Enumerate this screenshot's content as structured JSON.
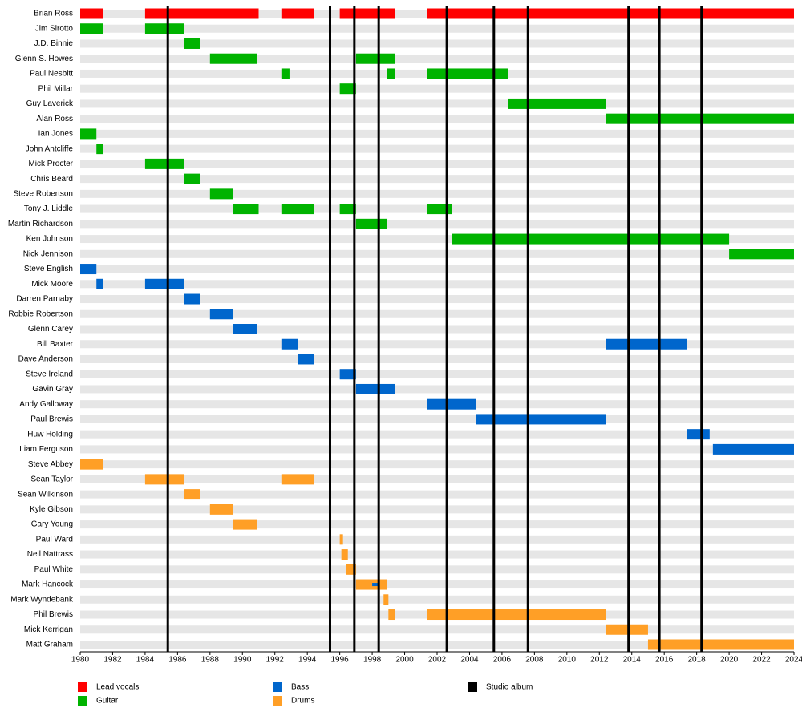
{
  "chart_data": {
    "type": "timeline",
    "categories": [
      "Brian Ross",
      "Jim Sirotto",
      "J.D. Binnie",
      "Glenn S. Howes",
      "Paul Nesbitt",
      "Phil Millar",
      "Guy Laverick",
      "Alan Ross",
      "Ian Jones",
      "John Antcliffe",
      "Mick Procter",
      "Chris Beard",
      "Steve Robertson",
      "Tony J. Liddle",
      "Martin Richardson",
      "Ken Johnson",
      "Nick Jennison",
      "Steve English",
      "Mick Moore",
      "Darren Parnaby",
      "Robbie Robertson",
      "Glenn Carey",
      "Bill Baxter",
      "Dave Anderson",
      "Steve Ireland",
      "Gavin Gray",
      "Andy Galloway",
      "Paul Brewis",
      "Huw Holding",
      "Liam Ferguson",
      "Steve Abbey",
      "Sean Taylor",
      "Sean Wilkinson",
      "Kyle Gibson",
      "Gary Young",
      "Paul Ward",
      "Neil Nattrass",
      "Paul White",
      "Mark Hancock",
      "Mark Wyndebank",
      "Phil Brewis",
      "Mick Kerrigan",
      "Matt Graham"
    ],
    "series": [
      {
        "name": "Lead vocals",
        "color": "#ff0000",
        "values": [
          [
            [
              1980,
              1981.4
            ],
            [
              1984,
              1991
            ],
            [
              1992.4,
              1994.4
            ],
            [
              1996,
              1999.4
            ],
            [
              2001.4,
              2024
            ]
          ],
          [],
          [],
          [],
          [],
          [],
          [],
          [],
          [],
          [],
          [],
          [],
          [],
          [],
          [],
          [],
          [],
          [],
          [],
          [],
          [],
          [],
          [],
          [],
          [],
          [],
          [],
          [],
          [],
          [],
          [],
          [],
          [],
          [],
          [],
          [],
          [],
          [],
          [],
          [],
          [],
          [],
          []
        ]
      },
      {
        "name": "Guitar",
        "color": "#00b300",
        "values": [
          [],
          [
            [
              1980,
              1981.4
            ],
            [
              1984,
              1986.4
            ]
          ],
          [
            [
              1986.4,
              1987.4
            ]
          ],
          [
            [
              1988,
              1990.9
            ],
            [
              1997,
              1999.4
            ]
          ],
          [
            [
              1992.4,
              1992.9
            ],
            [
              1998.9,
              1999.4
            ],
            [
              2001.4,
              2006.4
            ]
          ],
          [
            [
              1996,
              1997
            ]
          ],
          [
            [
              2006.4,
              2012.4
            ]
          ],
          [
            [
              2012.4,
              2024
            ]
          ],
          [
            [
              1980,
              1981
            ]
          ],
          [
            [
              1981,
              1981.4
            ]
          ],
          [
            [
              1984,
              1986.4
            ]
          ],
          [
            [
              1986.4,
              1987.4
            ]
          ],
          [
            [
              1988,
              1989.4
            ]
          ],
          [
            [
              1989.4,
              1991
            ],
            [
              1992.4,
              1994.4
            ],
            [
              1996,
              1997
            ],
            [
              2001.4,
              2002.9
            ]
          ],
          [
            [
              1997,
              1998.9
            ]
          ],
          [
            [
              2002.9,
              2020
            ]
          ],
          [
            [
              2020,
              2024
            ]
          ],
          [],
          [],
          [],
          [],
          [],
          [],
          [],
          [],
          [],
          [],
          [],
          [],
          [],
          [],
          [],
          [],
          [],
          [],
          [],
          [],
          [],
          [],
          [],
          [],
          [],
          []
        ]
      },
      {
        "name": "Bass",
        "color": "#0066cc",
        "values": [
          [],
          [],
          [],
          [],
          [],
          [],
          [],
          [],
          [],
          [],
          [],
          [],
          [],
          [],
          [],
          [],
          [],
          [
            [
              1980,
              1981
            ]
          ],
          [
            [
              1981,
              1981.4
            ],
            [
              1984,
              1986.4
            ]
          ],
          [
            [
              1986.4,
              1987.4
            ]
          ],
          [
            [
              1988,
              1989.4
            ]
          ],
          [
            [
              1989.4,
              1990.9
            ]
          ],
          [
            [
              1992.4,
              1993.4
            ],
            [
              2012.4,
              2017.4
            ]
          ],
          [
            [
              1993.4,
              1994.4
            ]
          ],
          [
            [
              1996,
              1997
            ]
          ],
          [
            [
              1997,
              1999.4
            ]
          ],
          [
            [
              2001.4,
              2004.4
            ]
          ],
          [
            [
              2004.4,
              2012.4
            ]
          ],
          [
            [
              2017.4,
              2018.8
            ]
          ],
          [
            [
              2019,
              2024
            ]
          ],
          [],
          [],
          [],
          [],
          [],
          [],
          [],
          [],
          [
            [
              1998,
              1998.4
            ]
          ],
          [],
          [],
          [],
          []
        ]
      },
      {
        "name": "Drums",
        "color": "#ff9f26",
        "values": [
          [],
          [],
          [],
          [],
          [],
          [],
          [],
          [],
          [],
          [],
          [],
          [],
          [],
          [],
          [],
          [],
          [],
          [],
          [],
          [],
          [],
          [],
          [],
          [],
          [],
          [],
          [],
          [],
          [],
          [],
          [
            [
              1980,
              1981.4
            ]
          ],
          [
            [
              1984,
              1986.4
            ],
            [
              1992.4,
              1994.4
            ]
          ],
          [
            [
              1986.4,
              1987.4
            ]
          ],
          [
            [
              1988,
              1989.4
            ]
          ],
          [
            [
              1989.4,
              1990.9
            ]
          ],
          [
            [
              1996,
              1996.2
            ]
          ],
          [
            [
              1996.1,
              1996.5
            ]
          ],
          [
            [
              1996.4,
              1997
            ]
          ],
          [
            [
              1997,
              1998.9
            ]
          ],
          [
            [
              1998.7,
              1999
            ]
          ],
          [
            [
              1999,
              1999.4
            ],
            [
              2001.4,
              2012.4
            ]
          ],
          [
            [
              2012.4,
              2015
            ]
          ],
          [
            [
              2015,
              2024
            ]
          ]
        ]
      }
    ],
    "events": {
      "name": "Studio album",
      "color": "#000000",
      "values": [
        1985.4,
        1995.4,
        1996.9,
        1998.4,
        2002.6,
        2005.5,
        2007.6,
        2013.8,
        2015.7,
        2018.3
      ]
    },
    "xlim": [
      1980,
      2024
    ],
    "xticks": [
      1980,
      1982,
      1984,
      1986,
      1988,
      1990,
      1992,
      1994,
      1996,
      1998,
      2000,
      2002,
      2004,
      2006,
      2008,
      2010,
      2012,
      2014,
      2016,
      2018,
      2020,
      2022,
      2024
    ]
  }
}
